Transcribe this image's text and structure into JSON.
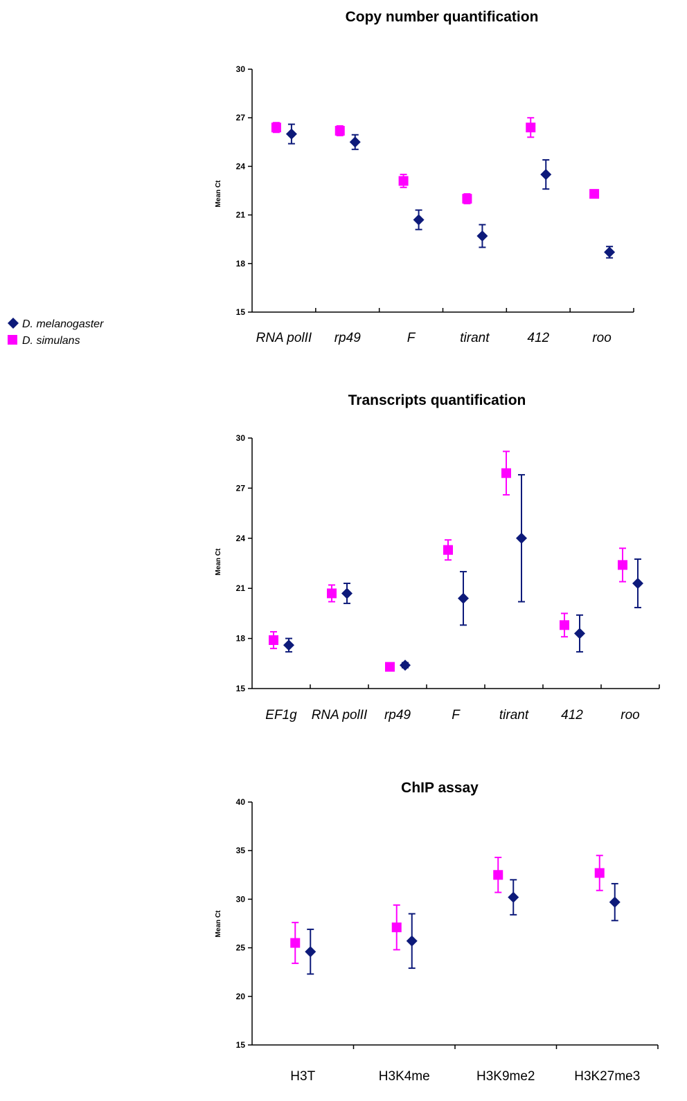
{
  "legend": {
    "items": [
      {
        "label": "D. melanogaster",
        "color": "#0d1a7a",
        "marker": "diamond"
      },
      {
        "label": "D. simulans",
        "color": "#ff00ff",
        "marker": "square"
      }
    ]
  },
  "chart_data": [
    {
      "type": "scatter",
      "title": "Copy number quantification",
      "xlabel": "",
      "ylabel": "Mean Ct",
      "ylim": [
        15,
        30
      ],
      "yticks": [
        15,
        18,
        21,
        24,
        27,
        30
      ],
      "grid": false,
      "categories_italic": true,
      "categories": [
        "RNA polII",
        "rp49",
        "F",
        "tirant",
        "412",
        "roo"
      ],
      "series": [
        {
          "name": "D. simulans",
          "color": "#ff00ff",
          "marker": "square",
          "values": [
            26.4,
            26.2,
            23.1,
            22.0,
            26.4,
            22.3
          ],
          "errors": [
            0.3,
            0.3,
            0.4,
            0.3,
            0.6,
            0.25
          ]
        },
        {
          "name": "D. melanogaster",
          "color": "#0d1a7a",
          "marker": "diamond",
          "values": [
            26.0,
            25.5,
            20.7,
            19.7,
            23.5,
            18.7
          ],
          "errors": [
            0.6,
            0.45,
            0.6,
            0.7,
            0.9,
            0.35
          ]
        }
      ]
    },
    {
      "type": "scatter",
      "title": "Transcripts quantification",
      "xlabel": "",
      "ylabel": "Mean Ct",
      "ylim": [
        15,
        30
      ],
      "yticks": [
        15,
        18,
        21,
        24,
        27,
        30
      ],
      "grid": false,
      "categories_italic": true,
      "categories": [
        "EF1g",
        "RNA polII",
        "rp49",
        "F",
        "tirant",
        "412",
        "roo"
      ],
      "series": [
        {
          "name": "D. simulans",
          "color": "#ff00ff",
          "marker": "square",
          "values": [
            17.9,
            20.7,
            16.3,
            23.3,
            27.9,
            18.8,
            22.4
          ],
          "errors": [
            0.5,
            0.5,
            0.1,
            0.6,
            1.3,
            0.7,
            1.0
          ]
        },
        {
          "name": "D. melanogaster",
          "color": "#0d1a7a",
          "marker": "diamond",
          "values": [
            17.6,
            20.7,
            16.4,
            20.4,
            24.0,
            18.3,
            21.3
          ],
          "errors": [
            0.4,
            0.6,
            0.15,
            1.6,
            3.8,
            1.1,
            1.45
          ]
        }
      ]
    },
    {
      "type": "scatter",
      "title": "ChIP assay",
      "xlabel": "",
      "ylabel": "Mean Ct",
      "ylim": [
        15,
        40
      ],
      "yticks": [
        15,
        20,
        25,
        30,
        35,
        40
      ],
      "grid": false,
      "categories_italic": false,
      "categories": [
        "H3T",
        "H3K4me",
        "H3K9me2",
        "H3K27me3"
      ],
      "series": [
        {
          "name": "D. simulans",
          "color": "#ff00ff",
          "marker": "square",
          "values": [
            25.5,
            27.1,
            32.5,
            32.7
          ],
          "errors": [
            2.1,
            2.3,
            1.8,
            1.8
          ]
        },
        {
          "name": "D. melanogaster",
          "color": "#0d1a7a",
          "marker": "diamond",
          "values": [
            24.6,
            25.7,
            30.2,
            29.7
          ],
          "errors": [
            2.3,
            2.8,
            1.8,
            1.9
          ]
        }
      ]
    }
  ]
}
